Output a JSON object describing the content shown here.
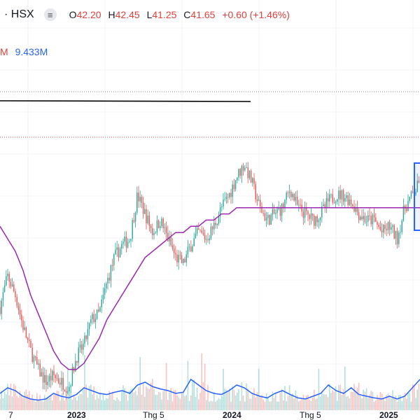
{
  "header": {
    "symbol": "· HSX",
    "pill_icon": "≡",
    "ohlc": {
      "o_label": "O",
      "o_value": "42.20",
      "h_label": "H",
      "h_value": "42.45",
      "l_label": "L",
      "l_value": "41.25",
      "c_label": "C",
      "c_value": "41.65",
      "change": "+0.60 (+1.46%)"
    }
  },
  "volume_legend": {
    "prefix": "M",
    "value": "9.433M"
  },
  "x_axis_labels": [
    "7",
    "2023",
    "Thg 5",
    "2024",
    "Thg 5",
    "2025"
  ],
  "colors": {
    "up": "#26a69a",
    "down": "#ef5350",
    "ma_long": "#9c27b0",
    "vol_ma": "#2962ff",
    "box": "#2962ff"
  },
  "chart_data": {
    "type": "candlestick",
    "price_path": [
      22,
      27,
      24,
      19,
      15,
      12,
      10,
      11,
      10,
      9,
      14,
      16,
      20,
      21,
      26,
      30,
      32,
      33,
      40,
      37,
      34,
      36,
      33,
      30,
      29,
      32,
      34,
      33,
      35,
      38,
      40,
      43,
      45,
      42,
      38,
      36,
      37,
      38,
      41,
      38,
      37,
      36,
      37,
      39,
      40,
      40,
      39,
      37,
      36,
      36,
      34,
      35,
      33,
      38,
      40,
      42
    ],
    "ma_long": [
      35,
      33,
      31,
      28,
      24,
      21,
      18,
      15,
      13,
      12,
      12,
      13,
      15,
      17,
      20,
      22,
      24,
      26,
      28,
      30,
      31,
      32,
      33,
      34,
      34,
      35,
      35,
      36,
      36,
      37,
      37,
      38,
      38,
      38,
      38,
      38,
      38,
      38,
      38,
      38,
      38,
      38,
      38,
      38,
      38,
      38,
      38,
      38,
      38,
      38,
      38,
      38,
      38,
      38,
      38,
      38
    ],
    "vol_ma": [
      0.3,
      0.4,
      0.35,
      0.25,
      0.2,
      0.18,
      0.2,
      0.3,
      0.25,
      0.22,
      0.28,
      0.4,
      0.35,
      0.3,
      0.28,
      0.32,
      0.35,
      0.3,
      0.45,
      0.5,
      0.42,
      0.38,
      0.35,
      0.3,
      0.32,
      0.55,
      0.45,
      0.35,
      0.3,
      0.28,
      0.35,
      0.45,
      0.4,
      0.3,
      0.25,
      0.22,
      0.3,
      0.35,
      0.28,
      0.22,
      0.2,
      0.25,
      0.3,
      0.45,
      0.35,
      0.3,
      0.4,
      0.28,
      0.25,
      0.22,
      0.2,
      0.25,
      0.2,
      0.25,
      0.4,
      0.55
    ]
  }
}
